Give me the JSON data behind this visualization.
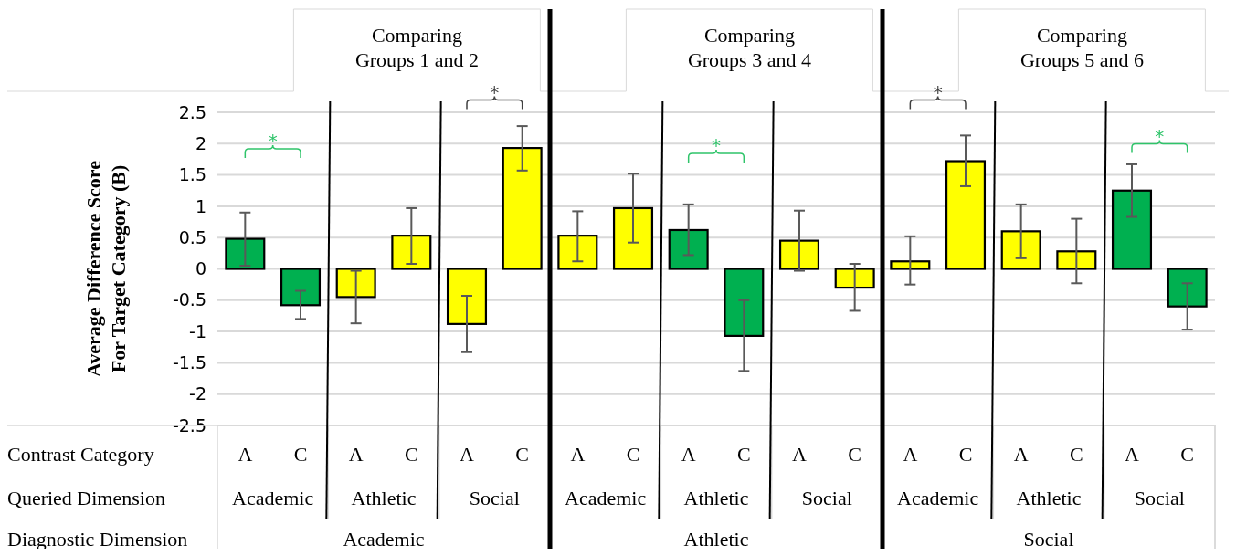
{
  "chart_data": {
    "type": "bar",
    "ylabel": "Average Difference Score For Target Category (B)",
    "categories": [
      "A",
      "C",
      "A",
      "C",
      "A",
      "C",
      "A",
      "C",
      "A",
      "C",
      "A",
      "C",
      "A",
      "C",
      "A",
      "C",
      "A",
      "C"
    ],
    "values": [
      0.48,
      -0.58,
      -0.45,
      0.53,
      -0.88,
      1.93,
      0.53,
      0.97,
      0.62,
      -1.07,
      0.45,
      -0.3,
      0.12,
      1.72,
      0.6,
      0.28,
      1.25,
      -0.6
    ],
    "colors": [
      "#00b050",
      "#00b050",
      "#ffff00",
      "#ffff00",
      "#ffff00",
      "#ffff00",
      "#ffff00",
      "#ffff00",
      "#00b050",
      "#00b050",
      "#ffff00",
      "#ffff00",
      "#ffff00",
      "#ffff00",
      "#ffff00",
      "#ffff00",
      "#00b050",
      "#00b050"
    ],
    "errors": [
      [
        0.05,
        0.9
      ],
      [
        -0.8,
        -0.35
      ],
      [
        -0.87,
        -0.03
      ],
      [
        0.08,
        0.97
      ],
      [
        -1.33,
        -0.43
      ],
      [
        1.57,
        2.28
      ],
      [
        0.12,
        0.92
      ],
      [
        0.42,
        1.52
      ],
      [
        0.22,
        1.03
      ],
      [
        -1.63,
        -0.5
      ],
      [
        -0.03,
        0.93
      ],
      [
        -0.67,
        0.08
      ],
      [
        -0.25,
        0.52
      ],
      [
        1.32,
        2.13
      ],
      [
        0.17,
        1.03
      ],
      [
        -0.23,
        0.8
      ],
      [
        0.83,
        1.67
      ],
      [
        -0.97,
        -0.23
      ]
    ],
    "ylim": [
      -2.5,
      2.5
    ],
    "yticks": [
      2.5,
      2,
      1.5,
      1,
      0.5,
      0,
      -0.5,
      -1,
      -1.5,
      -2,
      -2.5
    ],
    "grid": "y",
    "annotations": [
      "Comparing Groups 1 and 2",
      "Comparing Groups 3 and 4",
      "Comparing Groups 5 and 6",
      "Contrast Category",
      "Queried Dimension",
      "Diagnostic Dimension",
      "Academic",
      "Athletic",
      "Social",
      "Academic",
      "Athletic",
      "Social",
      "Academic",
      "Athletic",
      "Social",
      "Academic",
      "Athletic",
      "Social",
      "*",
      "*",
      "*",
      "*",
      "*"
    ]
  }
}
